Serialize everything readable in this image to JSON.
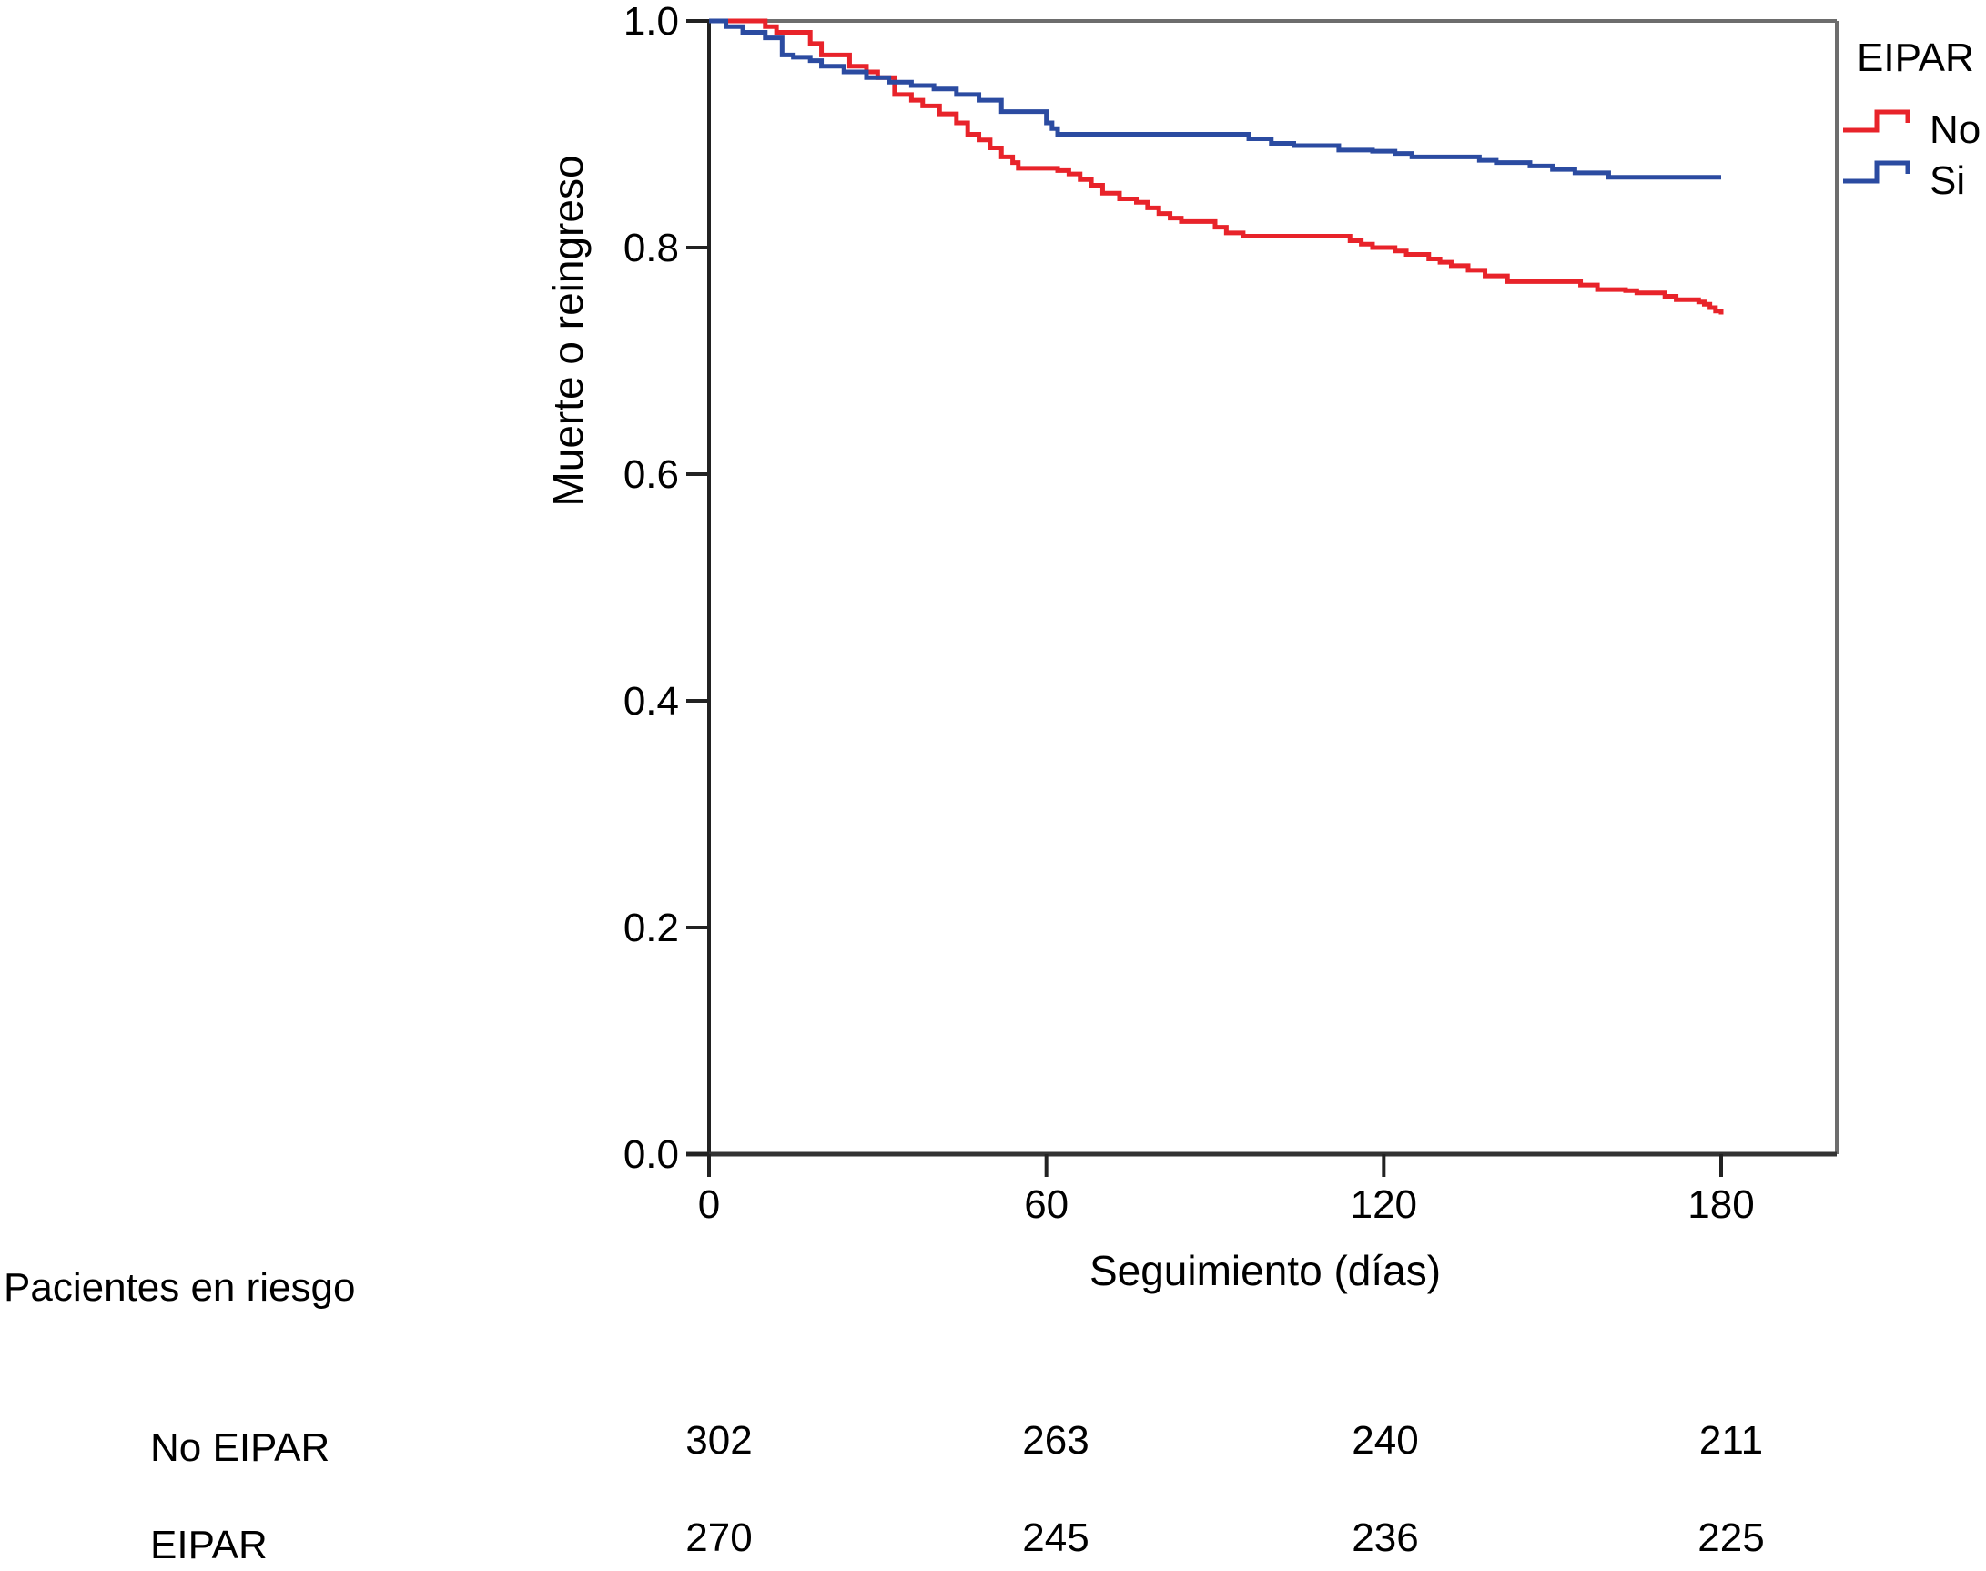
{
  "chart_data": {
    "type": "line",
    "subtype": "kaplan-meier-step",
    "title": "",
    "xlabel": "Seguimiento (días)",
    "ylabel": "Muerte o reingreso",
    "xlim": [
      0,
      200
    ],
    "ylim": [
      0,
      1.0
    ],
    "xticks": [
      0,
      60,
      120,
      180
    ],
    "xtick_labels": [
      "0",
      "60",
      "120",
      "180"
    ],
    "yticks": [
      0.0,
      0.2,
      0.4,
      0.6,
      0.8,
      1.0
    ],
    "ytick_labels": [
      "0.0",
      "0.2",
      "0.4",
      "0.6",
      "0.8",
      "1.0"
    ],
    "grid": false,
    "legend": {
      "title": "EIPAR",
      "position": "right-top",
      "entries": [
        "No",
        "Si"
      ]
    },
    "series": [
      {
        "name": "No",
        "color": "#e8232a",
        "x": [
          0,
          10,
          12,
          18,
          20,
          25,
          28,
          30,
          33,
          36,
          38,
          41,
          44,
          46,
          48,
          50,
          52,
          54,
          55,
          62,
          64,
          66,
          68,
          70,
          73,
          76,
          78,
          80,
          82,
          84,
          90,
          92,
          95,
          114,
          116,
          118,
          122,
          124,
          128,
          130,
          132,
          135,
          138,
          142,
          150,
          155,
          158,
          163,
          165,
          170,
          172,
          176,
          177,
          178,
          179,
          180
        ],
        "y": [
          1.0,
          0.995,
          0.99,
          0.98,
          0.97,
          0.96,
          0.955,
          0.95,
          0.935,
          0.93,
          0.925,
          0.918,
          0.91,
          0.9,
          0.895,
          0.888,
          0.88,
          0.875,
          0.87,
          0.868,
          0.865,
          0.86,
          0.855,
          0.848,
          0.843,
          0.84,
          0.835,
          0.83,
          0.826,
          0.823,
          0.818,
          0.813,
          0.81,
          0.806,
          0.803,
          0.8,
          0.797,
          0.794,
          0.79,
          0.787,
          0.784,
          0.78,
          0.775,
          0.77,
          0.77,
          0.767,
          0.763,
          0.762,
          0.76,
          0.757,
          0.754,
          0.752,
          0.75,
          0.747,
          0.744,
          0.741
        ]
      },
      {
        "name": "Si",
        "color": "#2b4ba1",
        "x": [
          0,
          3,
          6,
          10,
          13,
          15,
          18,
          20,
          24,
          28,
          32,
          36,
          40,
          44,
          48,
          52,
          60,
          61,
          62,
          96,
          100,
          104,
          112,
          118,
          122,
          125,
          137,
          140,
          146,
          150,
          154,
          160,
          180
        ],
        "y": [
          1.0,
          0.995,
          0.99,
          0.985,
          0.97,
          0.968,
          0.965,
          0.96,
          0.955,
          0.95,
          0.946,
          0.943,
          0.94,
          0.935,
          0.93,
          0.92,
          0.91,
          0.905,
          0.9,
          0.896,
          0.892,
          0.89,
          0.886,
          0.885,
          0.883,
          0.88,
          0.877,
          0.875,
          0.872,
          0.869,
          0.866,
          0.862,
          0.862
        ]
      }
    ]
  },
  "risk_table": {
    "title": "Pacientes en riesgo",
    "time_points": [
      0,
      60,
      120,
      180
    ],
    "rows": [
      {
        "label": "No EIPAR",
        "values": [
          "302",
          "263",
          "240",
          "211"
        ]
      },
      {
        "label": "EIPAR",
        "values": [
          "270",
          "245",
          "236",
          "225"
        ]
      }
    ]
  }
}
